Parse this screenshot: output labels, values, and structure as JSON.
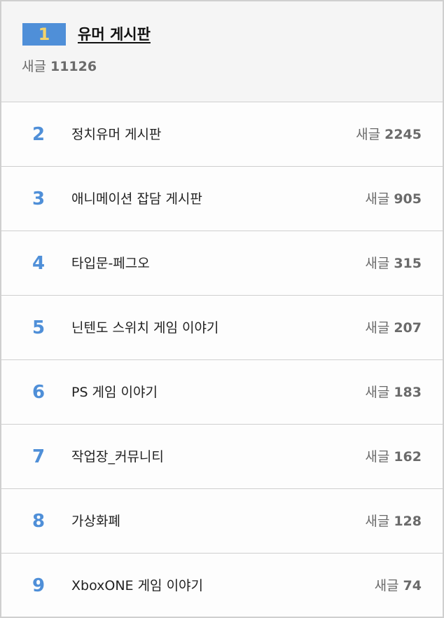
{
  "colors": {
    "accent_blue": "#4f8fd8",
    "gold": "#f3d36b",
    "border": "#cfcfcf",
    "top_bg": "#f5f5f5",
    "muted_text": "#6a6a6a"
  },
  "top": {
    "rank": "1",
    "title": "유머 게시판",
    "count_label": "새글",
    "count": "11126"
  },
  "items": [
    {
      "rank": "2",
      "title": "정치유머 게시판",
      "count_label": "새글",
      "count": "2245"
    },
    {
      "rank": "3",
      "title": "애니메이션 잡담 게시판",
      "count_label": "새글",
      "count": "905"
    },
    {
      "rank": "4",
      "title": "타입문-페그오",
      "count_label": "새글",
      "count": "315"
    },
    {
      "rank": "5",
      "title": "닌텐도 스위치 게임 이야기",
      "count_label": "새글",
      "count": "207"
    },
    {
      "rank": "6",
      "title": "PS 게임 이야기",
      "count_label": "새글",
      "count": "183"
    },
    {
      "rank": "7",
      "title": "작업장_커뮤니티",
      "count_label": "새글",
      "count": "162"
    },
    {
      "rank": "8",
      "title": "가상화폐",
      "count_label": "새글",
      "count": "128"
    },
    {
      "rank": "9",
      "title": "XboxONE 게임 이야기",
      "count_label": "새글",
      "count": "74"
    }
  ]
}
